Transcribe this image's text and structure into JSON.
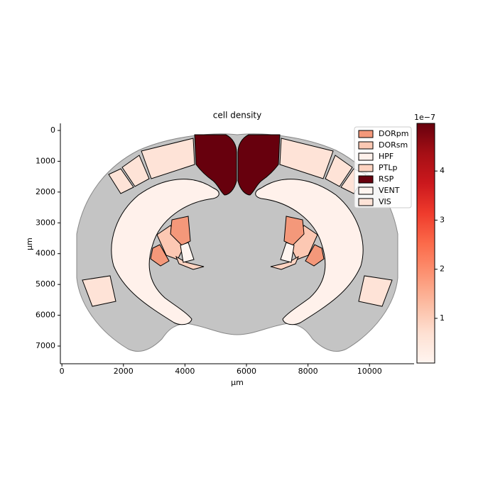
{
  "chart_data": {
    "type": "choropleth",
    "title": "cell density",
    "xlabel": "µm",
    "ylabel": "µm",
    "xlim": [
      -50,
      11450
    ],
    "ylim": [
      -230,
      7575
    ],
    "y_inverted": true,
    "xticks": [
      0,
      2000,
      4000,
      6000,
      8000,
      10000
    ],
    "yticks": [
      0,
      1000,
      2000,
      3000,
      4000,
      5000,
      6000,
      7000
    ],
    "legend_loc": "upper right",
    "series": [
      {
        "name": "DORpm",
        "color": "#f4987a",
        "value": 1.7
      },
      {
        "name": "DORsm",
        "color": "#fcc8b3",
        "value": 1.0
      },
      {
        "name": "HPF",
        "color": "#fff1eb",
        "value": 0.1
      },
      {
        "name": "PTLp",
        "color": "#fdd3c1",
        "value": 0.8
      },
      {
        "name": "RSP",
        "color": "#67000d",
        "value": 4.9
      },
      {
        "name": "VENT",
        "color": "#fff5f0",
        "value": 0.09
      },
      {
        "name": "VIS",
        "color": "#fee3d7",
        "value": 0.3
      }
    ],
    "colorbar": {
      "lim": [
        0.09,
        4.97
      ],
      "ticks": [
        1,
        2,
        3,
        4
      ],
      "offset_label": "1e−7"
    }
  }
}
